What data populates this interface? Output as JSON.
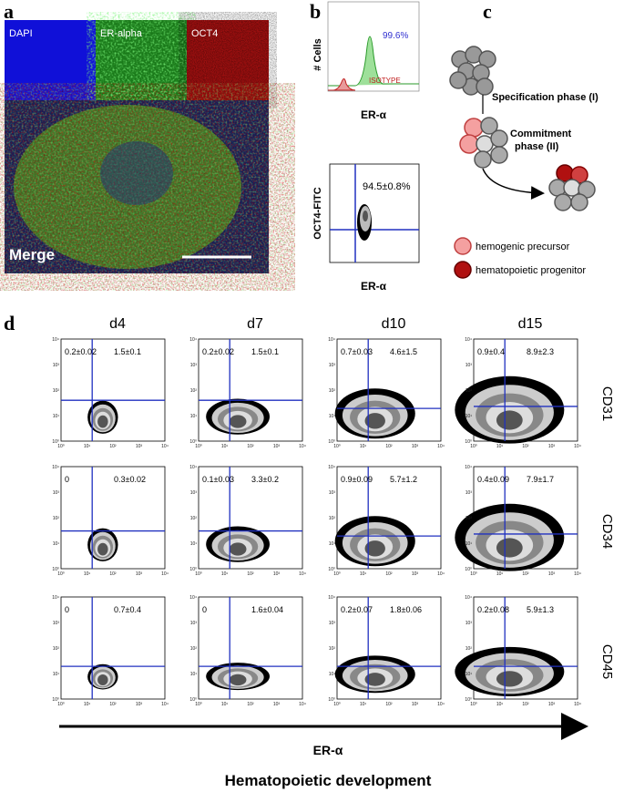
{
  "panel_a": {
    "label": "a",
    "channels": [
      "DAPI",
      "ER-alpha",
      "OCT4"
    ],
    "merge": "Merge"
  },
  "panel_b": {
    "label": "b",
    "histogram": {
      "y_label": "# Cells",
      "x_label": "ER-α",
      "positive": "99.6%",
      "isotype": "ISOTYPE"
    },
    "dotplot": {
      "y_label": "OCT4-FITC",
      "x_label": "ER-α",
      "value": "94.5±0.8%"
    }
  },
  "panel_c": {
    "label": "c",
    "phase1": "Specification phase (I)",
    "phase2_line1": "Commitment",
    "phase2_line2": "phase (II)",
    "legend": [
      "hemogenic precursor",
      "hematopoietic progenitor"
    ]
  },
  "panel_d": {
    "label": "d",
    "days": [
      "d4",
      "d7",
      "d10",
      "d15"
    ],
    "markers": [
      "CD31",
      "CD34",
      "CD45"
    ],
    "ticks": [
      "10⁰",
      "10¹",
      "10²",
      "10³",
      "10⁴"
    ],
    "quadrants": [
      [
        [
          "0.2±0.02",
          "1.5±0.1"
        ],
        [
          "0.2±0.02",
          "1.5±0.1"
        ],
        [
          "0.7±0.03",
          "4.6±1.5"
        ],
        [
          "0.9±0.4",
          "8.9±2.3"
        ]
      ],
      [
        [
          "0",
          "0.3±0.02"
        ],
        [
          "0.1±0.03",
          "3.3±0.2"
        ],
        [
          "0.9±0.09",
          "5.7±1.2"
        ],
        [
          "0.4±0.09",
          "7.9±1.7"
        ]
      ],
      [
        [
          "0",
          "0.7±0.4"
        ],
        [
          "0",
          "1.6±0.04"
        ],
        [
          "0.2±0.07",
          "1.8±0.06"
        ],
        [
          "0.2±0.08",
          "5.9±1.3"
        ]
      ]
    ],
    "x_axis": "ER-α",
    "caption": "Hematopoietic development"
  }
}
